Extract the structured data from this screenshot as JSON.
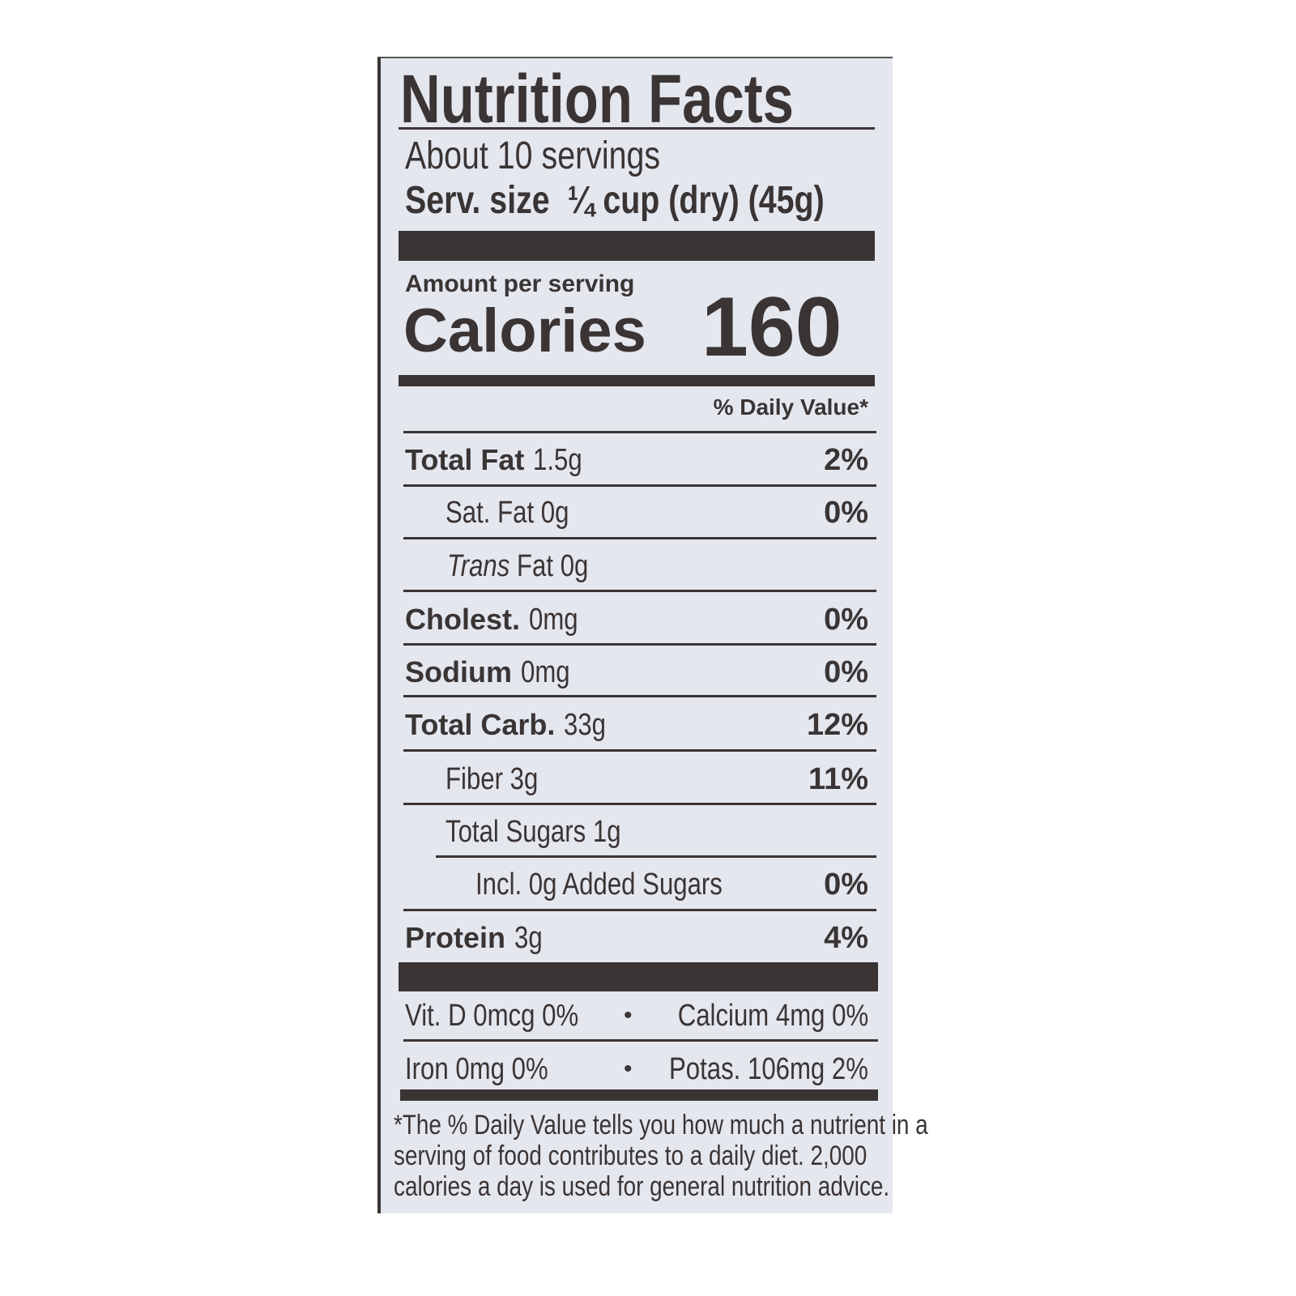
{
  "title": "Nutrition Facts",
  "servings": "About 10 servings",
  "serving_size_label": "Serv. size",
  "serving_size_value": "¼ cup (dry) (45g)",
  "amount_per_serving": "Amount per serving",
  "calories_label": "Calories",
  "calories_value": "160",
  "daily_value_header": "% Daily Value*",
  "nutrients": [
    {
      "name": "Total Fat",
      "amount": "1.5g",
      "dv": "2%"
    },
    {
      "name": "Sat. Fat",
      "amount": "0g",
      "dv": "0%"
    },
    {
      "name": "Trans",
      "amount": "Fat 0g",
      "dv": ""
    },
    {
      "name": "Cholest.",
      "amount": "0mg",
      "dv": "0%"
    },
    {
      "name": "Sodium",
      "amount": "0mg",
      "dv": "0%"
    },
    {
      "name": "Total Carb.",
      "amount": "33g",
      "dv": "12%"
    },
    {
      "name": "Fiber",
      "amount": "3g",
      "dv": "11%"
    },
    {
      "name": "Total Sugars",
      "amount": "1g",
      "dv": ""
    },
    {
      "name": "Incl. 0g Added Sugars",
      "amount": "",
      "dv": "0%"
    },
    {
      "name": "Protein",
      "amount": "3g",
      "dv": "4%"
    }
  ],
  "vitamins": [
    {
      "left": "Vit. D 0mcg 0%",
      "right": "Calcium 4mg 0%"
    },
    {
      "left": "Iron 0mg 0%",
      "right": "Potas. 106mg 2%"
    }
  ],
  "bullet": "•",
  "footnote": [
    "*The % Daily Value tells you how much a nutrient in a",
    "serving of food contributes to a daily diet. 2,000",
    "calories a day is used for general nutrition advice."
  ]
}
